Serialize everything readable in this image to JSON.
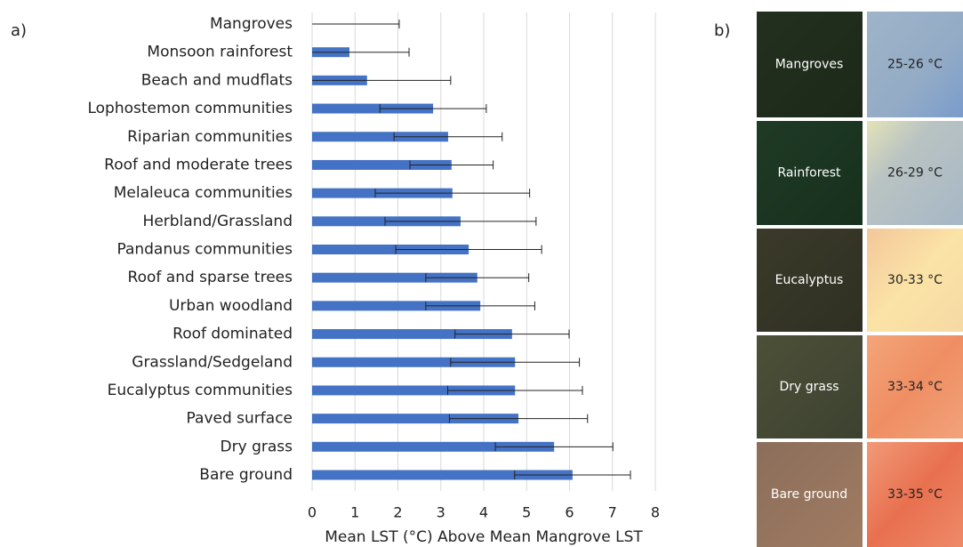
{
  "panel_a_label": "a)",
  "chart_data": {
    "type": "bar",
    "orientation": "horizontal",
    "x_label": "Mean LST (°C) Above Mean Mangrove LST",
    "categories": [
      "Mangroves",
      "Monsoon rainforest",
      "Beach and mudflats",
      "Lophostemon communities",
      "Riparian communities",
      "Roof and moderate trees",
      "Melaleuca communities",
      "Herbland/Grassland",
      "Pandanus communities",
      "Roof and sparse trees",
      "Urban woodland",
      "Roof dominated",
      "Grassland/Sedgeland",
      "Eucalyptus communities",
      "Paved surface",
      "Dry grass",
      "Bare ground"
    ],
    "values": [
      0,
      0.87,
      1.28,
      2.82,
      3.17,
      3.25,
      3.27,
      3.46,
      3.65,
      3.85,
      3.92,
      4.66,
      4.73,
      4.73,
      4.81,
      5.64,
      6.07
    ],
    "errors": [
      2.03,
      1.39,
      1.95,
      1.24,
      1.26,
      0.97,
      1.8,
      1.76,
      1.7,
      1.2,
      1.27,
      1.33,
      1.5,
      1.57,
      1.61,
      1.37,
      1.35
    ],
    "color": "#4472c4",
    "xlim": [
      0,
      8
    ],
    "xticks": [
      0,
      1,
      2,
      3,
      4,
      5,
      6,
      7,
      8
    ],
    "grid": true
  },
  "panel_b": {
    "label": "b)",
    "rows": [
      {
        "land": "Mangroves",
        "temp": "25-26 °C"
      },
      {
        "land": "Rainforest",
        "temp": "26-29 °C"
      },
      {
        "land": "Eucalyptus",
        "temp": "30-33 °C"
      },
      {
        "land": "Dry grass",
        "temp": "33-34 °C"
      },
      {
        "land": "Bare ground",
        "temp": "33-35 °C"
      }
    ]
  }
}
